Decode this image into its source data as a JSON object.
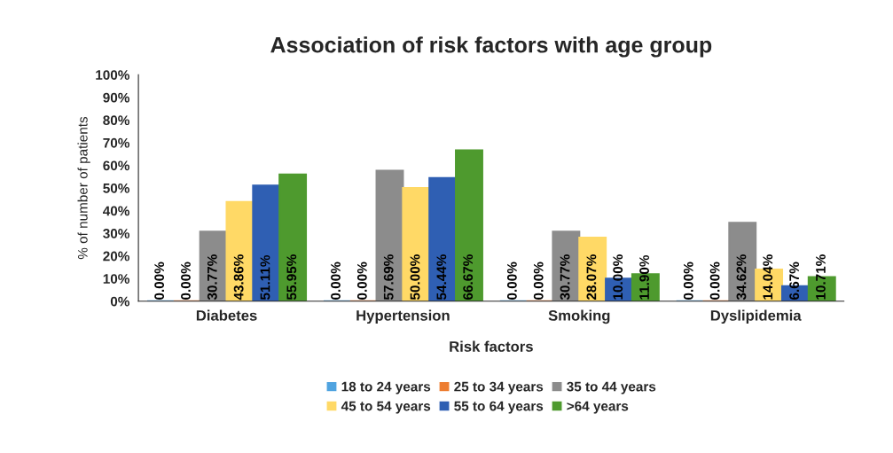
{
  "chart_data": {
    "type": "bar",
    "title": "Association of risk factors with age group",
    "xlabel": "Risk factors",
    "ylabel": "% of number of patients",
    "categories": [
      "Diabetes",
      "Hypertension",
      "Smoking",
      "Dyslipidemia"
    ],
    "series": [
      {
        "name": "18 to 24 years",
        "color": "#4fa3e0",
        "values": [
          0,
          0,
          0,
          0
        ],
        "value_labels": [
          "0.00%",
          "0.00%",
          "0.00%",
          "0.00%"
        ]
      },
      {
        "name": "25 to 34 years",
        "color": "#ed7d31",
        "values": [
          0,
          0,
          0,
          0
        ],
        "value_labels": [
          "0.00%",
          "0.00%",
          "0.00%",
          "0.00%"
        ]
      },
      {
        "name": "35 to 44 years",
        "color": "#8c8c8c",
        "values": [
          30.77,
          57.69,
          30.77,
          34.62
        ],
        "value_labels": [
          "30.77%",
          "57.69%",
          "30.77%",
          "34.62%"
        ]
      },
      {
        "name": "45 to 54 years",
        "color": "#ffd966",
        "values": [
          43.86,
          50.0,
          28.07,
          14.04
        ],
        "value_labels": [
          "43.86%",
          "50.00%",
          "28.07%",
          "14.04%"
        ]
      },
      {
        "name": "55 to 64 years",
        "color": "#2f5fb3",
        "values": [
          51.11,
          54.44,
          10.0,
          6.67
        ],
        "value_labels": [
          "51.11%",
          "54.44%",
          "10.00%",
          "6.67%"
        ]
      },
      {
        "name": ">64 years",
        "color": "#4e9a2e",
        "values": [
          55.95,
          66.67,
          11.9,
          10.71
        ],
        "value_labels": [
          "55.95%",
          "66.67%",
          "11.90%",
          "10.71%"
        ]
      }
    ],
    "ylim": [
      0,
      100
    ],
    "yticks": [
      {
        "value": 0,
        "label": "0%"
      },
      {
        "value": 10,
        "label": "10%"
      },
      {
        "value": 20,
        "label": "20%"
      },
      {
        "value": 30,
        "label": "30%"
      },
      {
        "value": 40,
        "label": "40%"
      },
      {
        "value": 50,
        "label": "50%"
      },
      {
        "value": 60,
        "label": "60%"
      },
      {
        "value": 70,
        "label": "70%"
      },
      {
        "value": 80,
        "label": "80%"
      },
      {
        "value": 90,
        "label": "90%"
      },
      {
        "value": 100,
        "label": "100%"
      }
    ],
    "grid": false,
    "legend": "bottom"
  }
}
